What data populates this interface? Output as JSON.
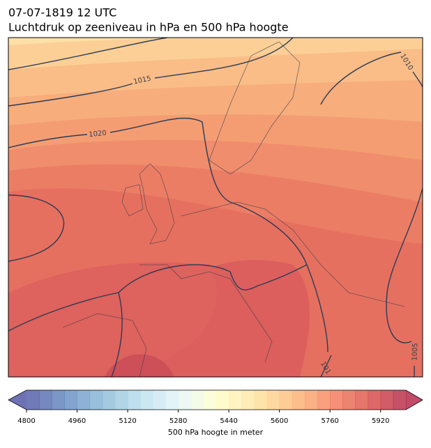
{
  "header": {
    "date": "07-07-1819 12 UTC",
    "title": "Luchtdruk op zeeniveau in hPa en 500 hPa hoogte"
  },
  "map": {
    "isobar_labels": [
      "1015",
      "1020",
      "1010",
      "1005",
      "101"
    ]
  },
  "colorbar": {
    "label": "500 hPa hoogte in meter",
    "lim": [
      4800,
      6000
    ],
    "step": 40,
    "ticks": [
      4800,
      4960,
      5120,
      5280,
      5440,
      5600,
      5760,
      5920
    ]
  }
}
